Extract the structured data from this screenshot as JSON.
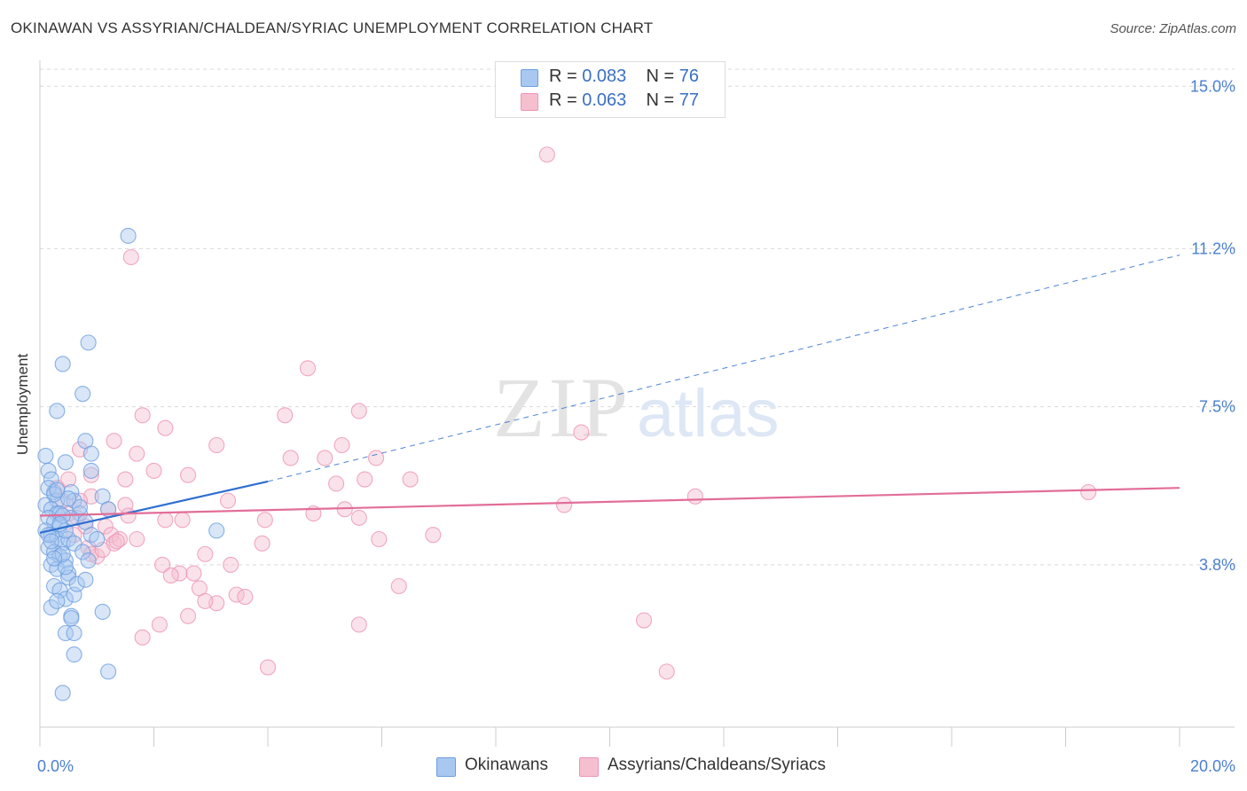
{
  "header": {
    "title": "OKINAWAN VS ASSYRIAN/CHALDEAN/SYRIAC UNEMPLOYMENT CORRELATION CHART",
    "source": "Source: ZipAtlas.com"
  },
  "watermark": {
    "zip": "ZIP",
    "atlas": "atlas"
  },
  "legend": {
    "items": [
      {
        "r_label": "R =",
        "r_value": "0.083",
        "n_label": "N =",
        "n_value": "76"
      },
      {
        "r_label": "R =",
        "r_value": "0.063",
        "n_label": "N =",
        "n_value": "77"
      }
    ]
  },
  "colors": {
    "blue_fill": "#a9c8f0",
    "blue_stroke": "#6d9ee0",
    "blue_line": "#2e6fd0",
    "pink_fill": "#f5bfd0",
    "pink_stroke": "#ee94b2",
    "pink_line": "#e26e98",
    "axis_label": "#4a7fd0",
    "grid": "#d9d9d9"
  },
  "chart_data": {
    "type": "scatter",
    "title": "OKINAWAN VS ASSYRIAN/CHALDEAN/SYRIAC UNEMPLOYMENT CORRELATION CHART",
    "xlabel": "",
    "ylabel": "Unemployment",
    "xlim": [
      0,
      20
    ],
    "ylim": [
      0,
      15.4
    ],
    "x_tick_labels": [
      {
        "value": 0,
        "label": "0.0%"
      },
      {
        "value": 20,
        "label": "20.0%"
      }
    ],
    "y_tick_labels": [
      {
        "value": 3.8,
        "label": "3.8%"
      },
      {
        "value": 7.5,
        "label": "7.5%"
      },
      {
        "value": 11.2,
        "label": "11.2%"
      },
      {
        "value": 15.0,
        "label": "15.0%"
      }
    ],
    "grid": "horizontal dashed",
    "series": [
      {
        "name": "Okinawans",
        "r": 0.083,
        "n": 76,
        "trend": {
          "x_start": 0,
          "y_start": 4.55,
          "x_solid_end": 4.0,
          "y_solid_end": 5.75,
          "x_end": 20,
          "y_end": 11.05
        },
        "points": [
          [
            0.1,
            6.35
          ],
          [
            0.15,
            6.0
          ],
          [
            0.2,
            5.8
          ],
          [
            0.25,
            5.5
          ],
          [
            0.3,
            5.3
          ],
          [
            0.1,
            5.2
          ],
          [
            0.2,
            5.1
          ],
          [
            0.3,
            5.0
          ],
          [
            0.15,
            4.9
          ],
          [
            0.25,
            4.8
          ],
          [
            0.35,
            4.7
          ],
          [
            0.1,
            4.6
          ],
          [
            0.2,
            4.5
          ],
          [
            0.3,
            4.4
          ],
          [
            0.4,
            4.3
          ],
          [
            0.15,
            4.2
          ],
          [
            0.25,
            4.1
          ],
          [
            0.35,
            4.0
          ],
          [
            0.45,
            3.9
          ],
          [
            0.2,
            3.8
          ],
          [
            0.3,
            3.7
          ],
          [
            0.5,
            3.6
          ],
          [
            0.25,
            3.3
          ],
          [
            0.35,
            3.2
          ],
          [
            0.45,
            3.0
          ],
          [
            0.2,
            2.8
          ],
          [
            0.55,
            2.6
          ],
          [
            0.45,
            2.2
          ],
          [
            0.6,
            2.2
          ],
          [
            0.6,
            1.7
          ],
          [
            0.4,
            0.8
          ],
          [
            1.2,
            1.3
          ],
          [
            0.4,
            8.5
          ],
          [
            0.3,
            7.4
          ],
          [
            0.75,
            7.8
          ],
          [
            0.85,
            9.0
          ],
          [
            0.8,
            6.7
          ],
          [
            0.9,
            6.4
          ],
          [
            0.45,
            6.2
          ],
          [
            0.55,
            5.5
          ],
          [
            0.6,
            5.3
          ],
          [
            0.7,
            5.0
          ],
          [
            0.8,
            4.8
          ],
          [
            0.9,
            4.5
          ],
          [
            0.5,
            4.4
          ],
          [
            0.6,
            4.3
          ],
          [
            0.75,
            4.1
          ],
          [
            0.85,
            3.9
          ],
          [
            0.5,
            3.5
          ],
          [
            0.6,
            3.1
          ],
          [
            1.1,
            2.7
          ],
          [
            1.1,
            5.4
          ],
          [
            1.2,
            5.1
          ],
          [
            1.55,
            11.5
          ],
          [
            3.1,
            4.6
          ],
          [
            1.0,
            4.4
          ],
          [
            0.15,
            5.6
          ],
          [
            0.35,
            5.0
          ],
          [
            0.45,
            4.6
          ],
          [
            0.55,
            4.9
          ],
          [
            0.25,
            5.45
          ],
          [
            0.15,
            4.5
          ],
          [
            0.45,
            3.75
          ],
          [
            0.65,
            3.35
          ],
          [
            0.3,
            2.95
          ],
          [
            0.55,
            2.55
          ],
          [
            0.7,
            5.15
          ],
          [
            0.2,
            4.35
          ],
          [
            0.4,
            4.05
          ],
          [
            0.5,
            5.35
          ],
          [
            0.3,
            5.55
          ],
          [
            0.4,
            4.95
          ],
          [
            0.8,
            3.45
          ],
          [
            0.9,
            6.0
          ],
          [
            0.25,
            3.95
          ],
          [
            0.35,
            4.75
          ]
        ]
      },
      {
        "name": "Assyrians/Chaldeans/Syriacs",
        "r": 0.063,
        "n": 77,
        "trend": {
          "x_start": 0,
          "y_start": 4.95,
          "x_end": 20,
          "y_end": 5.6
        },
        "points": [
          [
            8.9,
            13.4
          ],
          [
            1.6,
            11.0
          ],
          [
            4.7,
            8.4
          ],
          [
            1.8,
            7.3
          ],
          [
            2.2,
            7.0
          ],
          [
            3.1,
            6.6
          ],
          [
            1.3,
            6.7
          ],
          [
            1.7,
            6.4
          ],
          [
            0.7,
            6.5
          ],
          [
            2.6,
            5.9
          ],
          [
            2.0,
            6.0
          ],
          [
            0.9,
            5.9
          ],
          [
            1.5,
            5.8
          ],
          [
            0.9,
            5.4
          ],
          [
            0.7,
            5.3
          ],
          [
            1.5,
            5.2
          ],
          [
            1.2,
            5.1
          ],
          [
            0.5,
            5.0
          ],
          [
            1.55,
            4.95
          ],
          [
            2.2,
            4.85
          ],
          [
            2.5,
            4.85
          ],
          [
            0.8,
            4.7
          ],
          [
            1.15,
            4.7
          ],
          [
            1.25,
            4.5
          ],
          [
            1.7,
            4.4
          ],
          [
            1.3,
            4.3
          ],
          [
            0.85,
            4.2
          ],
          [
            1.0,
            4.0
          ],
          [
            0.9,
            4.05
          ],
          [
            2.9,
            4.05
          ],
          [
            2.15,
            3.8
          ],
          [
            3.35,
            3.8
          ],
          [
            2.45,
            3.6
          ],
          [
            2.7,
            3.6
          ],
          [
            2.8,
            3.25
          ],
          [
            3.45,
            3.1
          ],
          [
            3.1,
            2.9
          ],
          [
            3.6,
            3.05
          ],
          [
            2.6,
            2.6
          ],
          [
            2.1,
            2.4
          ],
          [
            1.8,
            2.1
          ],
          [
            3.9,
            4.3
          ],
          [
            3.95,
            4.85
          ],
          [
            4.4,
            6.3
          ],
          [
            4.3,
            7.3
          ],
          [
            5.0,
            6.3
          ],
          [
            5.2,
            5.7
          ],
          [
            5.3,
            6.6
          ],
          [
            5.35,
            5.1
          ],
          [
            5.6,
            4.9
          ],
          [
            5.6,
            7.4
          ],
          [
            5.7,
            5.8
          ],
          [
            5.9,
            6.3
          ],
          [
            5.95,
            4.4
          ],
          [
            6.3,
            3.3
          ],
          [
            6.5,
            5.8
          ],
          [
            6.9,
            4.5
          ],
          [
            4.0,
            1.4
          ],
          [
            5.6,
            2.4
          ],
          [
            9.2,
            5.2
          ],
          [
            9.5,
            6.9
          ],
          [
            10.6,
            2.5
          ],
          [
            11.0,
            1.3
          ],
          [
            11.5,
            5.4
          ],
          [
            18.4,
            5.5
          ],
          [
            0.4,
            5.3
          ],
          [
            0.6,
            4.5
          ],
          [
            1.1,
            4.15
          ],
          [
            0.5,
            5.8
          ],
          [
            1.4,
            4.4
          ],
          [
            2.9,
            2.95
          ],
          [
            2.3,
            3.55
          ],
          [
            0.3,
            5.6
          ],
          [
            0.65,
            4.9
          ],
          [
            1.35,
            4.35
          ],
          [
            3.3,
            5.3
          ],
          [
            4.8,
            5.0
          ]
        ]
      }
    ]
  }
}
